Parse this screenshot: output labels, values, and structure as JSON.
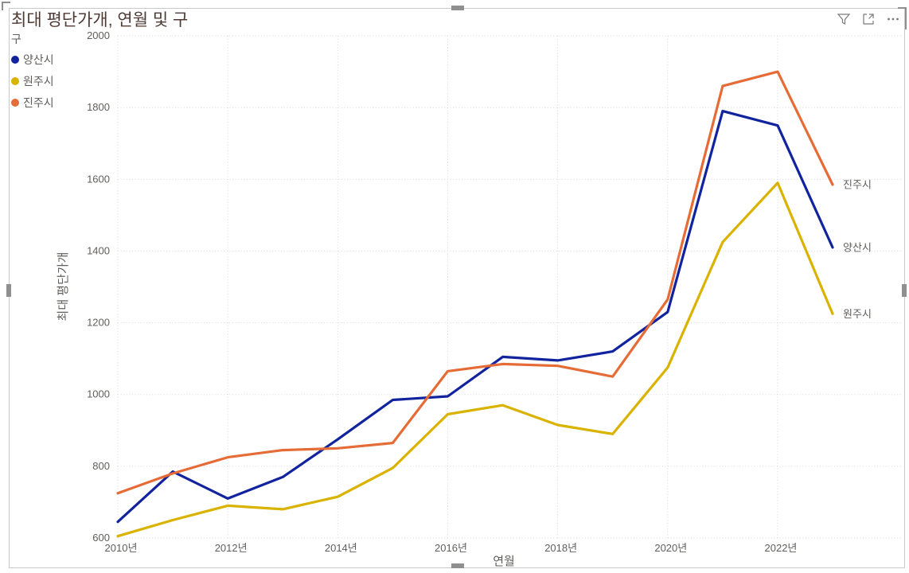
{
  "title": "최대 평단가개, 연월 및 구",
  "legend": {
    "title": "구",
    "items": [
      {
        "label": "양산시",
        "color": "#12239E"
      },
      {
        "label": "원주시",
        "color": "#D9B300"
      },
      {
        "label": "진주시",
        "color": "#E66C37"
      }
    ]
  },
  "toolbar": {
    "filter_icon": "filter-funnel",
    "focus_icon": "focus-mode",
    "more_icon": "more-options"
  },
  "chart_data": {
    "type": "line",
    "title": "최대 평단가개, 연월 및 구",
    "xlabel": "연월",
    "ylabel": "최대 평단가개",
    "x": [
      2010,
      2011,
      2012,
      2013,
      2014,
      2015,
      2016,
      2017,
      2018,
      2019,
      2020,
      2021,
      2022,
      2023
    ],
    "x_tick_indices": [
      0,
      2,
      4,
      6,
      8,
      10,
      12
    ],
    "x_tick_labels": [
      "2010년",
      "2012년",
      "2014년",
      "2016년",
      "2018년",
      "2020년",
      "2022년"
    ],
    "ylim": [
      600,
      2000
    ],
    "y_ticks": [
      600,
      800,
      1000,
      1200,
      1400,
      1600,
      1800,
      2000
    ],
    "grid": "dotted",
    "legend_position": "top-left",
    "series": [
      {
        "name": "양산시",
        "color": "#12239E",
        "values": [
          645,
          785,
          710,
          770,
          875,
          985,
          995,
          1105,
          1095,
          1120,
          1230,
          1790,
          1750,
          1410
        ]
      },
      {
        "name": "원주시",
        "color": "#D9B300",
        "values": [
          605,
          650,
          690,
          680,
          715,
          795,
          945,
          970,
          915,
          890,
          1075,
          1425,
          1590,
          1225
        ]
      },
      {
        "name": "진주시",
        "color": "#E66C37",
        "values": [
          725,
          780,
          825,
          845,
          850,
          865,
          1065,
          1085,
          1080,
          1050,
          1265,
          1860,
          1900,
          1585
        ]
      }
    ],
    "series_end_labels": [
      "양산시",
      "원주시",
      "진주시"
    ]
  },
  "axis_text_color": "#605e5c",
  "gridline_color": "#d8d8d8"
}
